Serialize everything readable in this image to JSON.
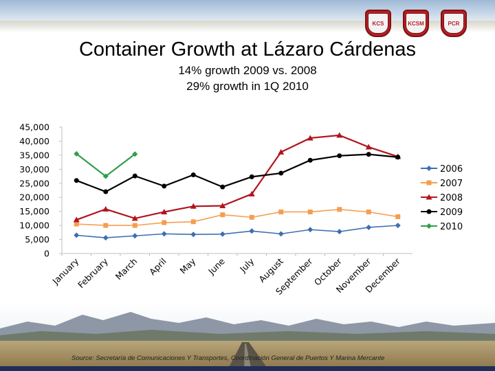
{
  "slide": {
    "title": "Container Growth at Lázaro Cárdenas",
    "subtitle_lines": [
      "14% growth 2009 vs. 2008",
      "29% growth in 1Q 2010"
    ],
    "source": "Source:  Secretaría de Comunicaciones Y Transportes, Coordinación General de Puertos Y Marina Mercante"
  },
  "logos": [
    {
      "name": "kansas-city-southern-logo",
      "abbr": "KCS"
    },
    {
      "name": "kansas-city-southern-de-mexico-logo",
      "abbr": "KCSM"
    },
    {
      "name": "panama-canal-railway-logo",
      "abbr": "PCR"
    }
  ],
  "chart_data": {
    "type": "line",
    "title": "",
    "xlabel": "",
    "ylabel": "",
    "categories": [
      "January",
      "February",
      "March",
      "April",
      "May",
      "June",
      "July",
      "August",
      "September",
      "October",
      "November",
      "December"
    ],
    "ylim": [
      0,
      45000
    ],
    "yticks": [
      0,
      5000,
      10000,
      15000,
      20000,
      25000,
      30000,
      35000,
      40000,
      45000
    ],
    "ytick_labels": [
      "0",
      "5,000",
      "10,000",
      "15,000",
      "20,000",
      "25,000",
      "30,000",
      "35,000",
      "40,000",
      "45,000"
    ],
    "grid": false,
    "legend": "right",
    "series": [
      {
        "name": "2006",
        "color": "#3d6fb0",
        "marker": "diamond",
        "values": [
          6500,
          5600,
          6300,
          7000,
          6800,
          6900,
          8000,
          7000,
          8500,
          7800,
          9300,
          10000
        ]
      },
      {
        "name": "2007",
        "color": "#f59e4f",
        "marker": "square",
        "values": [
          10500,
          10000,
          10000,
          11000,
          11300,
          13800,
          12900,
          14800,
          14800,
          15700,
          14800,
          13100
        ]
      },
      {
        "name": "2008",
        "color": "#b0141e",
        "marker": "triangle",
        "values": [
          12000,
          15800,
          12500,
          14800,
          16800,
          17000,
          21200,
          36100,
          41100,
          42100,
          37900,
          34500
        ]
      },
      {
        "name": "2009",
        "color": "#000000",
        "marker": "circle",
        "values": [
          26000,
          22000,
          27600,
          24000,
          28000,
          23700,
          27300,
          28600,
          33200,
          34800,
          35300,
          34300
        ]
      },
      {
        "name": "2010",
        "color": "#2e9e4a",
        "marker": "diamond",
        "values": [
          35500,
          27500,
          35400,
          null,
          null,
          null,
          null,
          null,
          null,
          null,
          null,
          null
        ]
      }
    ]
  }
}
